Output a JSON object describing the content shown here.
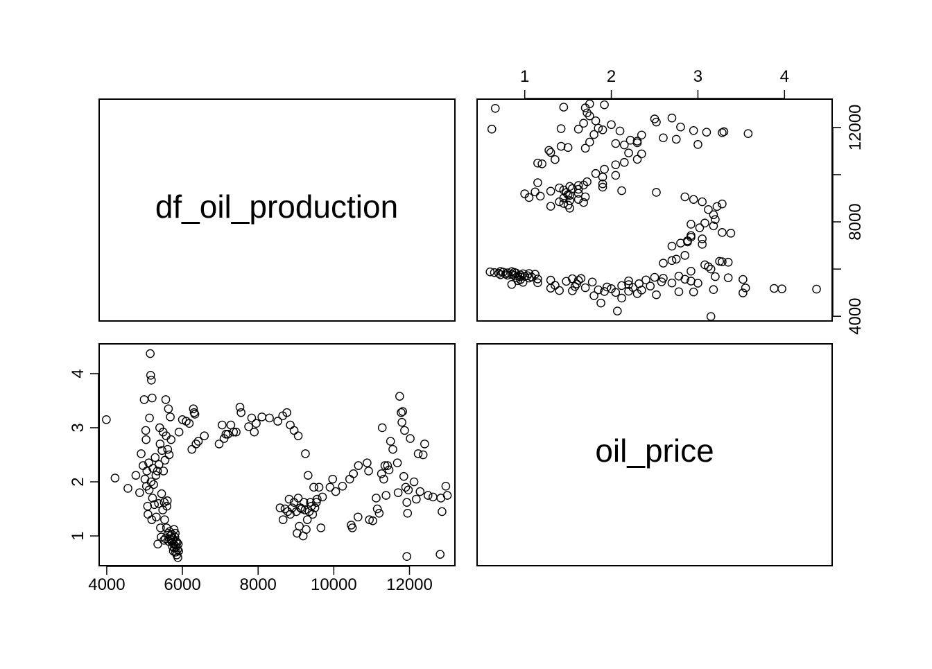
{
  "chart_data": {
    "type": "scatter",
    "layout": "pairs",
    "variables": [
      "df_oil_production",
      "oil_price"
    ],
    "ranges": {
      "df_oil_production": [
        3800,
        13200
      ],
      "oil_price": [
        0.45,
        4.55
      ]
    },
    "ticks": {
      "df_oil_production": [
        4000,
        6000,
        8000,
        10000,
        12000
      ],
      "oil_price": [
        1,
        2,
        3,
        4
      ]
    },
    "tick_labels": {
      "df_oil_production": [
        "4000",
        "6000",
        "8000",
        "10000",
        "12000"
      ],
      "oil_price": [
        "1",
        "2",
        "3",
        "4"
      ]
    },
    "grid": false,
    "points": [
      [
        3990,
        3.15
      ],
      [
        4220,
        2.07
      ],
      [
        4560,
        1.88
      ],
      [
        4770,
        2.12
      ],
      [
        4870,
        1.8
      ],
      [
        4910,
        2.52
      ],
      [
        4960,
        2.3
      ],
      [
        4990,
        3.52
      ],
      [
        5010,
        2.05
      ],
      [
        5030,
        2.95
      ],
      [
        5040,
        2.78
      ],
      [
        5050,
        1.92
      ],
      [
        5060,
        2.2
      ],
      [
        5080,
        1.55
      ],
      [
        5090,
        1.4
      ],
      [
        5110,
        2.35
      ],
      [
        5120,
        1.85
      ],
      [
        5130,
        3.18
      ],
      [
        5150,
        4.37
      ],
      [
        5160,
        3.97
      ],
      [
        5170,
        2.0
      ],
      [
        5180,
        3.88
      ],
      [
        5190,
        1.3
      ],
      [
        5200,
        3.55
      ],
      [
        5210,
        1.7
      ],
      [
        5220,
        2.25
      ],
      [
        5240,
        1.95
      ],
      [
        5260,
        1.58
      ],
      [
        5280,
        2.45
      ],
      [
        5300,
        2.12
      ],
      [
        5310,
        1.35
      ],
      [
        5340,
        2.2
      ],
      [
        5350,
        0.85
      ],
      [
        5370,
        1.6
      ],
      [
        5380,
        2.32
      ],
      [
        5400,
        3.0
      ],
      [
        5410,
        2.7
      ],
      [
        5420,
        1.15
      ],
      [
        5440,
        0.98
      ],
      [
        5450,
        1.78
      ],
      [
        5460,
        2.58
      ],
      [
        5480,
        1.48
      ],
      [
        5490,
        2.92
      ],
      [
        5500,
        2.2
      ],
      [
        5510,
        0.92
      ],
      [
        5520,
        1.62
      ],
      [
        5530,
        1.3
      ],
      [
        5540,
        2.4
      ],
      [
        5550,
        0.95
      ],
      [
        5560,
        3.52
      ],
      [
        5570,
        2.85
      ],
      [
        5580,
        1.15
      ],
      [
        5590,
        1.55
      ],
      [
        5600,
        1.65
      ],
      [
        5610,
        2.6
      ],
      [
        5620,
        1.05
      ],
      [
        5630,
        3.35
      ],
      [
        5640,
        0.9
      ],
      [
        5650,
        2.5
      ],
      [
        5660,
        1.08
      ],
      [
        5670,
        0.95
      ],
      [
        5680,
        3.2
      ],
      [
        5690,
        1.0
      ],
      [
        5700,
        2.78
      ],
      [
        5710,
        0.92
      ],
      [
        5720,
        1.03
      ],
      [
        5730,
        0.88
      ],
      [
        5740,
        0.8
      ],
      [
        5750,
        0.95
      ],
      [
        5760,
        0.72
      ],
      [
        5770,
        0.85
      ],
      [
        5780,
        1.12
      ],
      [
        5790,
        0.78
      ],
      [
        5800,
        0.98
      ],
      [
        5810,
        1.05
      ],
      [
        5820,
        0.7
      ],
      [
        5830,
        0.9
      ],
      [
        5840,
        0.8
      ],
      [
        5850,
        0.65
      ],
      [
        5860,
        0.88
      ],
      [
        5870,
        0.75
      ],
      [
        5880,
        0.6
      ],
      [
        5890,
        0.85
      ],
      [
        5900,
        0.72
      ],
      [
        5910,
        2.92
      ],
      [
        6000,
        3.15
      ],
      [
        6100,
        3.12
      ],
      [
        6180,
        3.08
      ],
      [
        6250,
        2.6
      ],
      [
        6290,
        3.35
      ],
      [
        6310,
        3.28
      ],
      [
        6330,
        3.25
      ],
      [
        6360,
        2.7
      ],
      [
        6420,
        2.75
      ],
      [
        6580,
        2.85
      ],
      [
        6970,
        2.7
      ],
      [
        7050,
        3.05
      ],
      [
        7100,
        2.8
      ],
      [
        7150,
        2.88
      ],
      [
        7200,
        2.88
      ],
      [
        7280,
        3.05
      ],
      [
        7350,
        2.92
      ],
      [
        7420,
        2.92
      ],
      [
        7520,
        3.38
      ],
      [
        7550,
        3.28
      ],
      [
        7750,
        3.02
      ],
      [
        7830,
        3.18
      ],
      [
        7900,
        2.92
      ],
      [
        7950,
        3.08
      ],
      [
        8100,
        3.2
      ],
      [
        8300,
        3.18
      ],
      [
        8520,
        3.12
      ],
      [
        8650,
        3.22
      ],
      [
        8760,
        3.28
      ],
      [
        8850,
        3.05
      ],
      [
        8950,
        2.95
      ],
      [
        9060,
        2.85
      ],
      [
        9250,
        2.52
      ],
      [
        8580,
        1.52
      ],
      [
        8660,
        1.3
      ],
      [
        8710,
        1.5
      ],
      [
        8780,
        1.45
      ],
      [
        8820,
        1.68
      ],
      [
        8850,
        1.4
      ],
      [
        8900,
        1.52
      ],
      [
        8950,
        1.62
      ],
      [
        9010,
        1.45
      ],
      [
        9030,
        1.05
      ],
      [
        9060,
        1.7
      ],
      [
        9090,
        1.18
      ],
      [
        9120,
        1.52
      ],
      [
        9150,
        1.5
      ],
      [
        9190,
        1.0
      ],
      [
        9210,
        1.62
      ],
      [
        9240,
        1.48
      ],
      [
        9270,
        1.12
      ],
      [
        9300,
        1.3
      ],
      [
        9320,
        2.12
      ],
      [
        9350,
        1.45
      ],
      [
        9380,
        1.62
      ],
      [
        9410,
        1.55
      ],
      [
        9440,
        1.4
      ],
      [
        9470,
        1.9
      ],
      [
        9500,
        1.52
      ],
      [
        9540,
        1.62
      ],
      [
        9560,
        1.68
      ],
      [
        9610,
        1.9
      ],
      [
        9660,
        1.15
      ],
      [
        9700,
        1.72
      ],
      [
        9900,
        1.9
      ],
      [
        9970,
        2.05
      ],
      [
        10050,
        1.82
      ],
      [
        10230,
        1.92
      ],
      [
        10420,
        2.05
      ],
      [
        10460,
        1.2
      ],
      [
        10490,
        1.15
      ],
      [
        10520,
        2.15
      ],
      [
        10640,
        1.35
      ],
      [
        10650,
        2.3
      ],
      [
        10880,
        2.35
      ],
      [
        10920,
        2.2
      ],
      [
        10940,
        1.3
      ],
      [
        11030,
        1.28
      ],
      [
        11120,
        1.7
      ],
      [
        11150,
        1.5
      ],
      [
        11200,
        1.42
      ],
      [
        11260,
        2.15
      ],
      [
        11280,
        3.0
      ],
      [
        11320,
        2.05
      ],
      [
        11350,
        2.3
      ],
      [
        11380,
        1.75
      ],
      [
        11420,
        2.3
      ],
      [
        11460,
        2.22
      ],
      [
        11500,
        2.75
      ],
      [
        11560,
        2.6
      ],
      [
        11680,
        2.35
      ],
      [
        11700,
        1.8
      ],
      [
        11740,
        3.58
      ],
      [
        11780,
        3.28
      ],
      [
        11800,
        3.1
      ],
      [
        11820,
        3.3
      ],
      [
        11850,
        2.1
      ],
      [
        11870,
        2.95
      ],
      [
        11900,
        1.9
      ],
      [
        11930,
        1.62
      ],
      [
        11950,
        1.42
      ],
      [
        11970,
        1.85
      ],
      [
        12020,
        2.8
      ],
      [
        12120,
        2.0
      ],
      [
        12180,
        1.68
      ],
      [
        12230,
        2.52
      ],
      [
        12280,
        1.82
      ],
      [
        12360,
        2.5
      ],
      [
        12400,
        2.7
      ],
      [
        12490,
        1.75
      ],
      [
        12620,
        1.72
      ],
      [
        11930,
        0.62
      ],
      [
        12810,
        0.66
      ],
      [
        12830,
        1.7
      ],
      [
        12860,
        1.45
      ],
      [
        12960,
        1.92
      ],
      [
        13000,
        1.75
      ]
    ]
  }
}
